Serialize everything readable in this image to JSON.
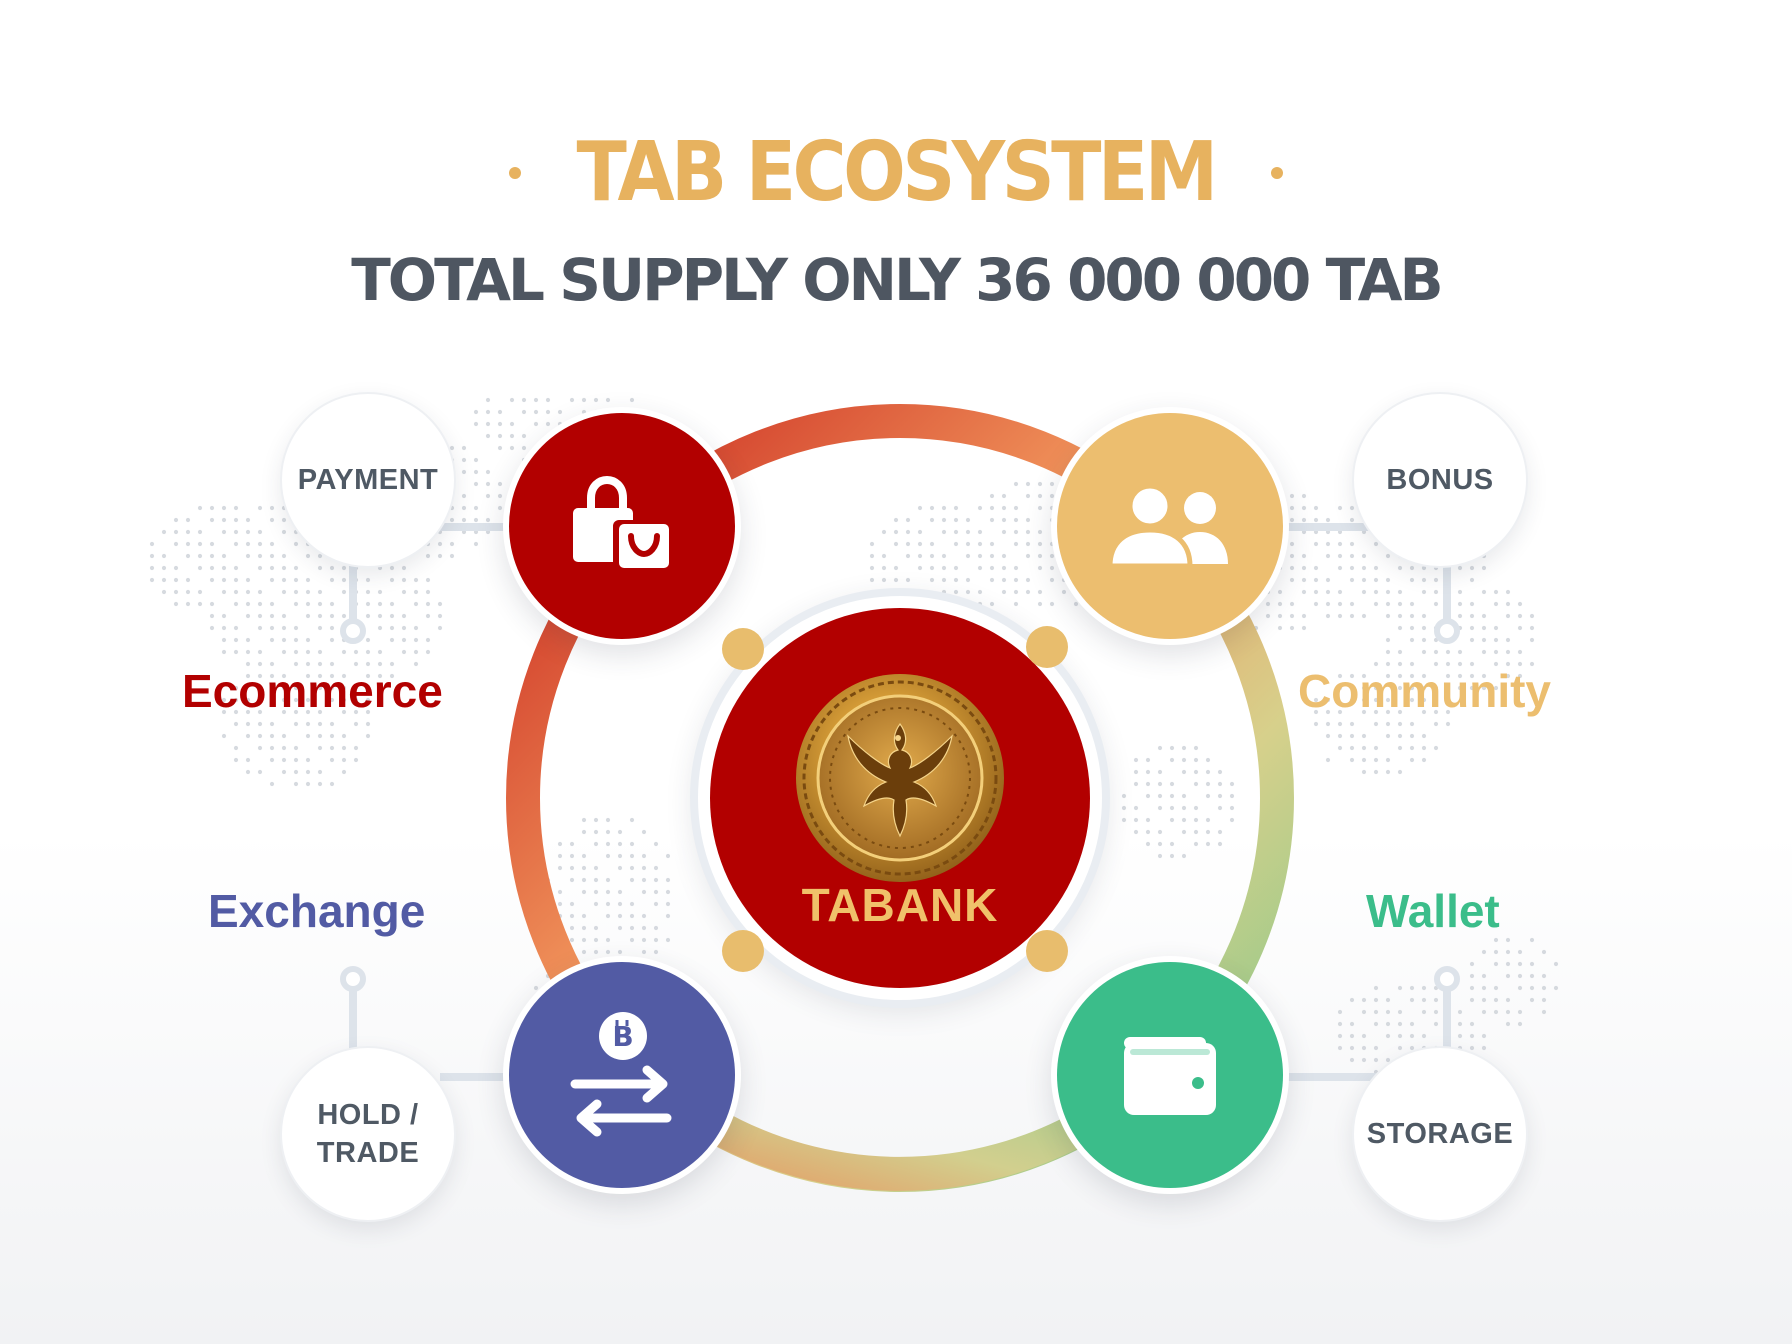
{
  "header": {
    "title": "TAB ECOSYSTEM",
    "subtitle": "TOTAL SUPPLY ONLY 36 000 000 TAB"
  },
  "center": {
    "brand": "TABANK",
    "color": "#b20000",
    "logo_icon": "phoenix-coin-icon"
  },
  "nodes": [
    {
      "id": "ecommerce",
      "feature": "Ecommerce",
      "label": "PAYMENT",
      "color": "#b20000",
      "icon": "shopping-bags-icon"
    },
    {
      "id": "community",
      "feature": "Community",
      "label": "BONUS",
      "color": "#ecbe6f",
      "icon": "users-icon"
    },
    {
      "id": "exchange",
      "feature": "Exchange",
      "label_lines": [
        "HOLD /",
        "TRADE"
      ],
      "color": "#525ba4",
      "icon": "bitcoin-exchange-icon"
    },
    {
      "id": "wallet",
      "feature": "Wallet",
      "label": "STORAGE",
      "color": "#3bbd8a",
      "icon": "wallet-icon"
    }
  ],
  "colors": {
    "title": "#e7b25f",
    "subtitle": "#4e5661",
    "ring_red": "#c8221b",
    "ring_orange": "#f0925a",
    "ring_green": "#86c98a",
    "connector": "#dde3ea"
  }
}
